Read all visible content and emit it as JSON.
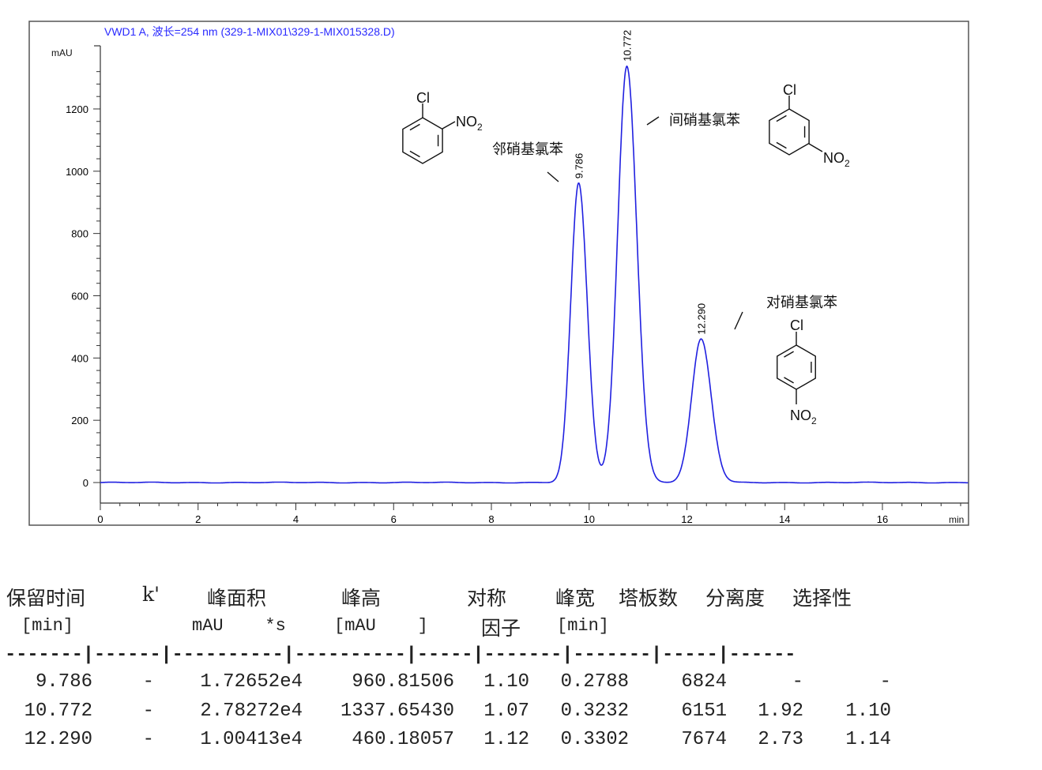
{
  "chart_data": {
    "type": "line",
    "title": "VWD1 A, 波长=254 nm (329-1-MIX01\\329-1-MIX015328.D)",
    "ylabel": "mAU",
    "xlabel": "min",
    "xlim": [
      0,
      17.7
    ],
    "ylim": [
      -60,
      1400
    ],
    "x_ticks": [
      0,
      2,
      4,
      6,
      8,
      10,
      12,
      14,
      16
    ],
    "y_ticks": [
      0,
      200,
      400,
      600,
      800,
      1000,
      1200
    ],
    "grid": false,
    "line_color": "#2020e0",
    "title_color": "#2a2aff",
    "peaks": [
      {
        "rt": 9.786,
        "label": "9.786",
        "height": 960.81506,
        "width": 0.2788,
        "compound": "邻硝基氯苯"
      },
      {
        "rt": 10.772,
        "label": "10.772",
        "height": 1337.6543,
        "width": 0.3232,
        "compound": "间硝基氯苯"
      },
      {
        "rt": 12.29,
        "label": "12.290",
        "height": 460.18057,
        "width": 0.3302,
        "compound": "对硝基氯苯"
      }
    ],
    "structure_labels": {
      "cl": "Cl",
      "no2": "NO",
      "sub2": "2"
    }
  },
  "table": {
    "headers": [
      "保留时间",
      "k'",
      "峰面积",
      "峰高",
      "对称",
      "峰宽",
      "塔板数",
      "分离度",
      "选择性"
    ],
    "subheaders": [
      "[min]",
      "mAU    *s",
      "[mAU    ]",
      "因子",
      "[min]"
    ],
    "separator": "-------|------|----------|----------|-----|-------|-------|-----|------",
    "rows": [
      [
        "9.786",
        "-",
        "1.72652e4",
        "960.81506",
        "1.10",
        "0.2788",
        "6824",
        "-",
        "-"
      ],
      [
        "10.772",
        "-",
        "2.78272e4",
        "1337.65430",
        "1.07",
        "0.3232",
        "6151",
        "1.92",
        "1.10"
      ],
      [
        "12.290",
        "-",
        "1.00413e4",
        "460.18057",
        "1.12",
        "0.3302",
        "7674",
        "2.73",
        "1.14"
      ]
    ]
  }
}
